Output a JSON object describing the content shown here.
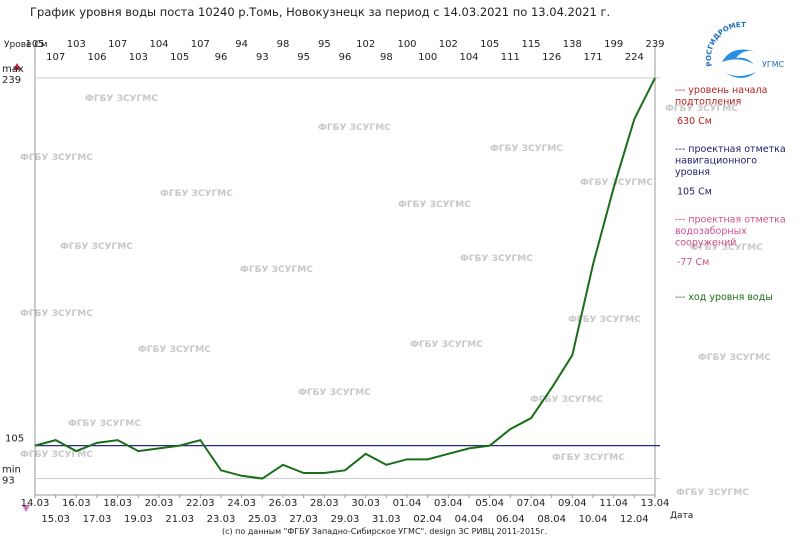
{
  "chart_data": {
    "type": "line",
    "title": "График уровня воды поста 10240 р.Томь, Новокузнецк за период с 14.03.2021 по 13.04.2021 г.",
    "y_axis_label": "Урове См",
    "x_axis_label": "Дата",
    "footer": "(c) по данным \"ФГБУ Западно-Сибирское УГМС\". design ЗС РИВЦ 2011-2015г.",
    "watermark": "ФГБУ ЗСУГМС",
    "logo": {
      "arc_text": "РОСГИДРОМЕТ",
      "text": "УГМС"
    },
    "categories": [
      "14.03",
      "15.03",
      "16.03",
      "17.03",
      "18.03",
      "19.03",
      "20.03",
      "21.03",
      "22.03",
      "23.03",
      "24.03",
      "25.03",
      "26.03",
      "27.03",
      "28.03",
      "29.03",
      "30.03",
      "31.03",
      "01.04",
      "02.04",
      "03.04",
      "04.04",
      "05.04",
      "06.04",
      "07.04",
      "08.04",
      "09.04",
      "10.04",
      "11.04",
      "12.04",
      "13.04"
    ],
    "series": [
      {
        "name": "--- ход уровня воды",
        "color": "#1a6e1a",
        "values": [
          105,
          107,
          103,
          106,
          107,
          103,
          104,
          105,
          107,
          96,
          94,
          93,
          98,
          95,
          95,
          96,
          102,
          98,
          100,
          100,
          102,
          104,
          105,
          111,
          115,
          126,
          138,
          171,
          199,
          224,
          239
        ]
      }
    ],
    "reference_lines": [
      {
        "value": 105,
        "label": "105",
        "color": "#2a2a7a"
      }
    ],
    "ylim": [
      87,
      251
    ],
    "yticks": [
      {
        "value": 239,
        "label": "max\n239"
      },
      {
        "value": 93,
        "label": "min\n93"
      }
    ],
    "legend_notes": [
      {
        "label": "--- уровень начала\nподтопления",
        "level": "630 См",
        "color": "#b22222"
      },
      {
        "label": "--- проектная отметка\nнавигационного\nуровня",
        "level": "105 См",
        "color": "#1c1c70"
      },
      {
        "label": "--- проектная отметка\nводозаборных\nсооружений",
        "level": "-77 См",
        "color": "#d0508a"
      }
    ]
  }
}
